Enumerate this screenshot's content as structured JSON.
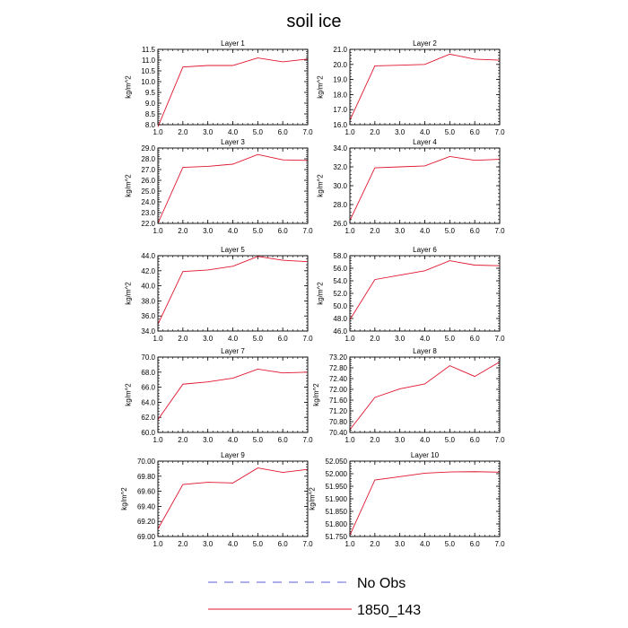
{
  "figure": {
    "title": "soil ice"
  },
  "legend": [
    {
      "label": "No Obs",
      "color": "#5b5bd6",
      "dash": "dashed"
    },
    {
      "label": "1850_143",
      "color": "#e0152d",
      "dash": "solid"
    }
  ],
  "chart_data": [
    {
      "type": "line",
      "title": "Layer 1",
      "ylabel": "kg/m^2",
      "xlim": [
        1,
        7
      ],
      "ylim": [
        8.0,
        11.5
      ],
      "xticks": [
        "1.0",
        "2.0",
        "3.0",
        "4.0",
        "5.0",
        "6.0",
        "7.0"
      ],
      "yticks": [
        "8.0",
        "8.5",
        "9.0",
        "9.5",
        "10.0",
        "10.5",
        "11.0",
        "11.5"
      ],
      "series": [
        {
          "name": "1850_143",
          "color": "#e0152d",
          "x": [
            1,
            2,
            3,
            4,
            5,
            6,
            7
          ],
          "y": [
            7.9,
            10.68,
            10.75,
            10.75,
            11.1,
            10.92,
            11.05
          ]
        }
      ]
    },
    {
      "type": "line",
      "title": "Layer 2",
      "ylabel": "kg/m^2",
      "xlim": [
        1,
        7
      ],
      "ylim": [
        16.0,
        21.0
      ],
      "xticks": [
        "1.0",
        "2.0",
        "3.0",
        "4.0",
        "5.0",
        "6.0",
        "7.0"
      ],
      "yticks": [
        "16.0",
        "17.0",
        "18.0",
        "19.0",
        "20.0",
        "21.0"
      ],
      "series": [
        {
          "name": "1850_143",
          "color": "#e0152d",
          "x": [
            1,
            2,
            3,
            4,
            5,
            6,
            7
          ],
          "y": [
            16.3,
            19.9,
            19.95,
            20.0,
            20.68,
            20.35,
            20.28
          ]
        }
      ]
    },
    {
      "type": "line",
      "title": "Layer 3",
      "ylabel": "kg/m^2",
      "xlim": [
        1,
        7
      ],
      "ylim": [
        22.0,
        29.0
      ],
      "xticks": [
        "1.0",
        "2.0",
        "3.0",
        "4.0",
        "5.0",
        "6.0",
        "7.0"
      ],
      "yticks": [
        "22.0",
        "23.0",
        "24.0",
        "25.0",
        "26.0",
        "27.0",
        "28.0",
        "29.0"
      ],
      "series": [
        {
          "name": "1850_143",
          "color": "#e0152d",
          "x": [
            1,
            2,
            3,
            4,
            5,
            6,
            7
          ],
          "y": [
            22.0,
            27.2,
            27.3,
            27.5,
            28.4,
            27.9,
            27.85
          ]
        }
      ]
    },
    {
      "type": "line",
      "title": "Layer 4",
      "ylabel": "kg/m^2",
      "xlim": [
        1,
        7
      ],
      "ylim": [
        26.0,
        34.0
      ],
      "xticks": [
        "1.0",
        "2.0",
        "3.0",
        "4.0",
        "5.0",
        "6.0",
        "7.0"
      ],
      "yticks": [
        "26.0",
        "28.0",
        "30.0",
        "32.0",
        "34.0"
      ],
      "series": [
        {
          "name": "1850_143",
          "color": "#e0152d",
          "x": [
            1,
            2,
            3,
            4,
            5,
            6,
            7
          ],
          "y": [
            26.3,
            31.9,
            32.0,
            32.1,
            33.1,
            32.7,
            32.8
          ]
        }
      ]
    },
    {
      "type": "line",
      "title": "Layer 5",
      "ylabel": "kg/m^2",
      "xlim": [
        1,
        7
      ],
      "ylim": [
        34.0,
        44.0
      ],
      "xticks": [
        "1.0",
        "2.0",
        "3.0",
        "4.0",
        "5.0",
        "6.0",
        "7.0"
      ],
      "yticks": [
        "34.0",
        "36.0",
        "38.0",
        "40.0",
        "42.0",
        "44.0"
      ],
      "series": [
        {
          "name": "1850_143",
          "color": "#e0152d",
          "x": [
            1,
            2,
            3,
            4,
            5,
            6,
            7
          ],
          "y": [
            34.9,
            41.9,
            42.1,
            42.6,
            43.9,
            43.4,
            43.2
          ]
        }
      ]
    },
    {
      "type": "line",
      "title": "Layer 6",
      "ylabel": "kg/m^2",
      "xlim": [
        1,
        7
      ],
      "ylim": [
        46.0,
        58.0
      ],
      "xticks": [
        "1.0",
        "2.0",
        "3.0",
        "4.0",
        "5.0",
        "6.0",
        "7.0"
      ],
      "yticks": [
        "46.0",
        "48.0",
        "50.0",
        "52.0",
        "54.0",
        "56.0",
        "58.0"
      ],
      "series": [
        {
          "name": "1850_143",
          "color": "#e0152d",
          "x": [
            1,
            2,
            3,
            4,
            5,
            6,
            7
          ],
          "y": [
            47.8,
            54.2,
            54.9,
            55.6,
            57.2,
            56.5,
            56.4
          ]
        }
      ]
    },
    {
      "type": "line",
      "title": "Layer 7",
      "ylabel": "kg/m^2",
      "xlim": [
        1,
        7
      ],
      "ylim": [
        60.0,
        70.0
      ],
      "xticks": [
        "1.0",
        "2.0",
        "3.0",
        "4.0",
        "5.0",
        "6.0",
        "7.0"
      ],
      "yticks": [
        "60.0",
        "62.0",
        "64.0",
        "66.0",
        "68.0",
        "70.0"
      ],
      "series": [
        {
          "name": "1850_143",
          "color": "#e0152d",
          "x": [
            1,
            2,
            3,
            4,
            5,
            6,
            7
          ],
          "y": [
            61.7,
            66.4,
            66.7,
            67.2,
            68.4,
            67.9,
            68.0
          ]
        }
      ]
    },
    {
      "type": "line",
      "title": "Layer 8",
      "ylabel": "kg/m^2",
      "xlim": [
        1,
        7
      ],
      "ylim": [
        70.4,
        73.2
      ],
      "xticks": [
        "1.0",
        "2.0",
        "3.0",
        "4.0",
        "5.0",
        "6.0",
        "7.0"
      ],
      "yticks": [
        "70.40",
        "70.80",
        "71.20",
        "71.60",
        "72.00",
        "72.40",
        "72.80",
        "73.20"
      ],
      "series": [
        {
          "name": "1850_143",
          "color": "#e0152d",
          "x": [
            1,
            2,
            3,
            4,
            5,
            6,
            7
          ],
          "y": [
            70.5,
            71.7,
            72.02,
            72.2,
            72.88,
            72.48,
            73.02
          ]
        }
      ]
    },
    {
      "type": "line",
      "title": "Layer 9",
      "ylabel": "kg/m^2",
      "xlim": [
        1,
        7
      ],
      "ylim": [
        69.0,
        70.0
      ],
      "xticks": [
        "1.0",
        "2.0",
        "3.0",
        "4.0",
        "5.0",
        "6.0",
        "7.0"
      ],
      "yticks": [
        "69.00",
        "69.20",
        "69.40",
        "69.60",
        "69.80",
        "70.00"
      ],
      "series": [
        {
          "name": "1850_143",
          "color": "#e0152d",
          "x": [
            1,
            2,
            3,
            4,
            5,
            6,
            7
          ],
          "y": [
            69.1,
            69.69,
            69.72,
            69.71,
            69.91,
            69.85,
            69.89
          ]
        }
      ]
    },
    {
      "type": "line",
      "title": "Layer 10",
      "ylabel": "kg/m^2",
      "xlim": [
        1,
        7
      ],
      "ylim": [
        51.75,
        52.05
      ],
      "xticks": [
        "1.0",
        "2.0",
        "3.0",
        "4.0",
        "5.0",
        "6.0",
        "7.0"
      ],
      "yticks": [
        "51.750",
        "51.800",
        "51.850",
        "51.900",
        "51.950",
        "52.000",
        "52.050"
      ],
      "series": [
        {
          "name": "1850_143",
          "color": "#e0152d",
          "x": [
            1,
            2,
            3,
            4,
            5,
            6,
            7
          ],
          "y": [
            51.755,
            51.975,
            51.988,
            52.002,
            52.007,
            52.008,
            52.006
          ]
        }
      ]
    }
  ]
}
